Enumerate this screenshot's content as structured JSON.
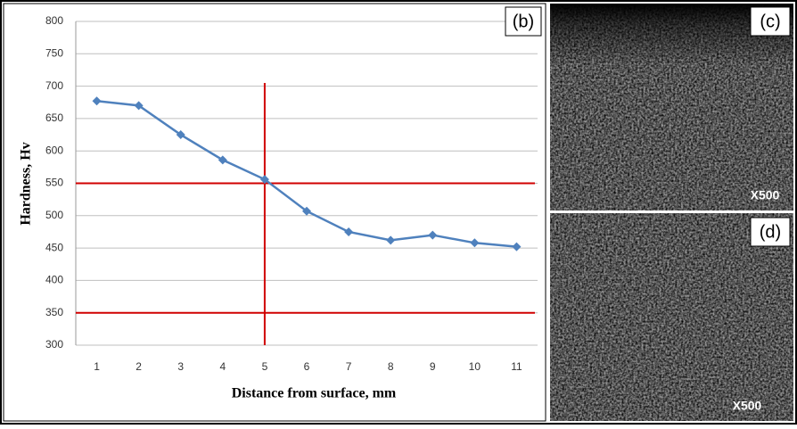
{
  "chart_data": {
    "type": "line",
    "panel_label": "(b)",
    "x_label": "Distance from surface, mm",
    "y_label": "Hardness, Hv",
    "x": [
      1,
      2,
      3,
      4,
      5,
      6,
      7,
      8,
      9,
      10,
      11
    ],
    "series": [
      {
        "color": "#4f81bd",
        "values": [
          677,
          670,
          625,
          586,
          556,
          507,
          475,
          462,
          470,
          458,
          452
        ]
      }
    ],
    "xlim": [
      0.5,
      11.5
    ],
    "xticks": [
      1,
      2,
      3,
      4,
      5,
      6,
      7,
      8,
      9,
      10,
      11
    ],
    "ylim": [
      300,
      800
    ],
    "yticks": [
      300,
      350,
      400,
      450,
      500,
      550,
      600,
      650,
      700,
      750,
      800
    ],
    "grid": true,
    "reference_color": "#d00000",
    "reference_lines": [
      {
        "y": 550
      },
      {
        "y": 350
      },
      {
        "x": 5,
        "y_range": [
          300,
          705
        ]
      }
    ]
  },
  "panels": [
    {
      "label": "(c)",
      "magnification": "X500"
    },
    {
      "label": "(d)",
      "magnification": "X500"
    }
  ]
}
